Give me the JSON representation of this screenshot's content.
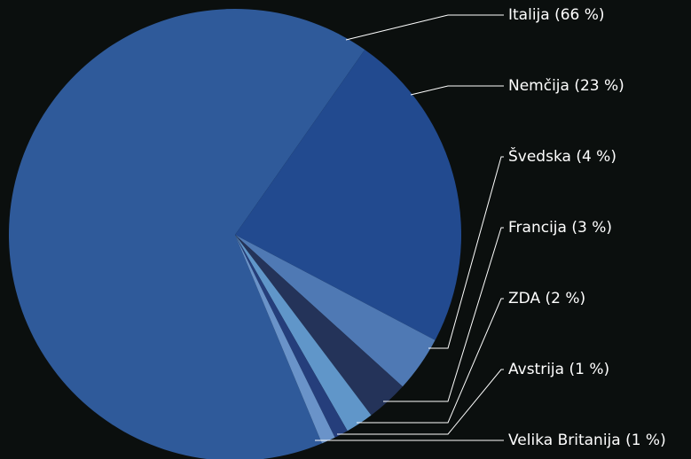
{
  "chart_data": {
    "type": "pie",
    "categories": [
      "Italija (66 %)",
      "Nemčija (23 %)",
      "Švedska (4 %)",
      "Francija (3 %)",
      "ZDA (2 %)",
      "Avstrija (1 %)",
      "Velika Britanija (1 %)"
    ],
    "values": [
      66,
      23,
      4,
      3,
      2,
      1,
      1
    ],
    "colors": [
      "#2f5a9a",
      "#224a8f",
      "#4f79b4",
      "#243359",
      "#6096c9",
      "#253e7b",
      "#6a93c9"
    ]
  }
}
